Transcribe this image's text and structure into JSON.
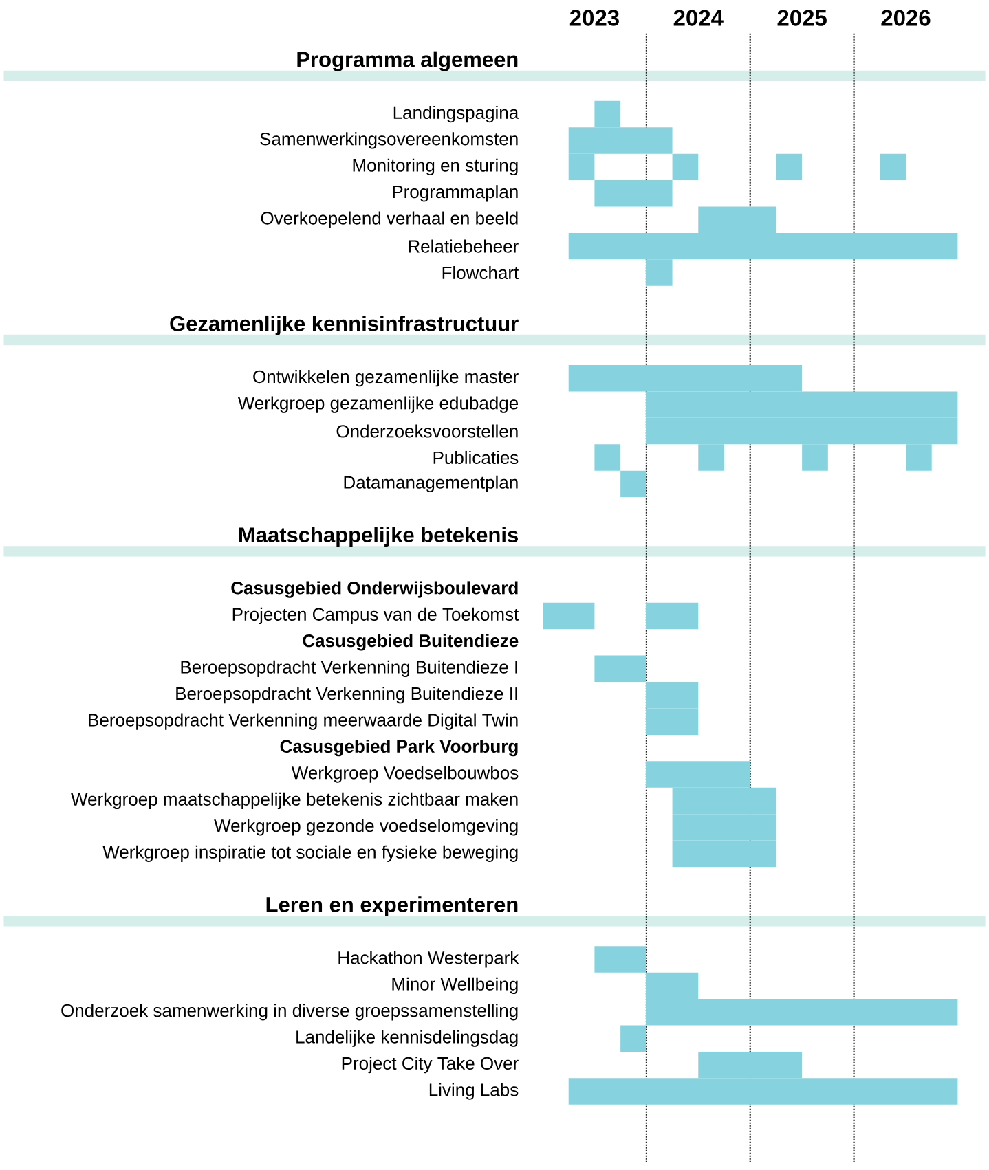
{
  "chart_data": {
    "type": "bar",
    "orientation": "horizontal",
    "xlim": [
      2023,
      2027
    ],
    "xticks": [
      {
        "value": 2023.5,
        "label": "2023"
      },
      {
        "value": 2024.5,
        "label": "2024"
      },
      {
        "value": 2025.5,
        "label": "2025"
      },
      {
        "value": 2026.5,
        "label": "2026"
      }
    ],
    "categories": [
      "**Programma algemeen**",
      null,
      "Landingspagina",
      "Samenwerkingsovereenkomsten",
      "Monitoring en sturing",
      "Programmaplan",
      "Overkoepelend verhaal en beeld",
      "Relatiebeheer",
      "Flowchart",
      null,
      "**Gezamenlijke kennisinfrastructuur**",
      null,
      "Ontwikkelen gezamenlijke master",
      "Werkgroep gezamenlijke edubadge",
      "Onderzoeksvoorstellen",
      "Publicaties",
      "Datamanagementplan",
      null,
      "**Maatschappelijke betekenis**",
      null,
      "**Casusgebied Onderwijsboulevard**",
      "Projecten Campus van de Toekomst",
      "**Casusgebied Buitendieze**",
      "Beroepsopdracht Verkenning Buitendieze I",
      "Beroepsopdracht Verkenning Buitendieze II",
      "Beroepsopdracht Verkenning meerwaarde Digital Twin",
      "**Casusgebied Park Voorburg**",
      "Werkgroep Voedselbouwbos",
      "Werkgroep maatschappelijke betekenis zichtbaar maken",
      "Werkgroep gezonde voedselomgeving",
      "Werkgroep inspiratie tot sociale en fysieke beweging",
      null,
      "**Leren en experimenteren**",
      null,
      "Hackathon Westerpark",
      "Minor Wellbeing",
      "Onderzoek samenwerking in diverse groepssamenstelling",
      "Landelijke kennisdelingsdag",
      "Project City Take Over",
      "Living Labs"
    ],
    "series": [
      {
        "color": "#86d3df",
        "base": [
          null,
          null,
          2023.5,
          2023.25,
          2023.25,
          2023.5,
          2024.5,
          2023.25,
          2024.0,
          null,
          null,
          null,
          2023.25,
          2024.0,
          2024.0,
          2023.5,
          2023.75,
          null,
          null,
          null,
          null,
          2023.0,
          null,
          2023.5,
          2024.0,
          2024.0,
          null,
          2024.0,
          2024.25,
          2024.25,
          2024.25,
          null,
          null,
          null,
          2023.5,
          2024.0,
          2024.0,
          2023.75,
          2024.5,
          2023.25
        ],
        "values": [
          null,
          null,
          0.25,
          1.0,
          0.25,
          0.75,
          0.75,
          3.75,
          0.25,
          null,
          null,
          null,
          2.25,
          3.0,
          3.0,
          0.25,
          0.25,
          null,
          null,
          null,
          null,
          0.5,
          null,
          0.5,
          0.5,
          0.5,
          null,
          1.0,
          1.0,
          1.0,
          1.0,
          null,
          null,
          null,
          0.5,
          0.5,
          3.0,
          0.25,
          1.0,
          3.75
        ]
      },
      {
        "color": "#86d3df",
        "base": [
          null,
          null,
          null,
          null,
          2024.25,
          null,
          null,
          null,
          null,
          null,
          null,
          null,
          null,
          null,
          null,
          2024.5,
          null,
          null,
          null,
          null,
          null,
          2024.0,
          null,
          null,
          null,
          null,
          null,
          null,
          null,
          null,
          null,
          null,
          null,
          null,
          null,
          null,
          null,
          null,
          null,
          null
        ],
        "values": [
          null,
          null,
          null,
          null,
          0.25,
          null,
          null,
          null,
          null,
          null,
          null,
          null,
          null,
          null,
          null,
          0.25,
          null,
          null,
          null,
          null,
          null,
          0.5,
          null,
          null,
          null,
          null,
          null,
          null,
          null,
          null,
          null,
          null,
          null,
          null,
          null,
          null,
          null,
          null,
          null,
          null
        ]
      },
      {
        "color": "#86d3df",
        "base": [
          null,
          null,
          null,
          null,
          2025.25,
          null,
          null,
          null,
          null,
          null,
          null,
          null,
          null,
          null,
          null,
          2025.5,
          null,
          null,
          null,
          null,
          null,
          null,
          null,
          null,
          null,
          null,
          null,
          null,
          null,
          null,
          null,
          null,
          null,
          null,
          null,
          null,
          null,
          null,
          null,
          null
        ],
        "values": [
          null,
          null,
          null,
          null,
          0.25,
          null,
          null,
          null,
          null,
          null,
          null,
          null,
          null,
          null,
          null,
          0.25,
          null,
          null,
          null,
          null,
          null,
          null,
          null,
          null,
          null,
          null,
          null,
          null,
          null,
          null,
          null,
          null,
          null,
          null,
          null,
          null,
          null,
          null,
          null,
          null
        ]
      },
      {
        "color": "#86d3df",
        "base": [
          null,
          null,
          null,
          null,
          2026.25,
          null,
          null,
          null,
          null,
          null,
          null,
          null,
          null,
          null,
          null,
          2026.5,
          null,
          null,
          null,
          null,
          null,
          null,
          null,
          null,
          null,
          null,
          null,
          null,
          null,
          null,
          null,
          null,
          null,
          null,
          null,
          null,
          null,
          null,
          null,
          null
        ],
        "values": [
          null,
          null,
          null,
          null,
          0.25,
          null,
          null,
          null,
          null,
          null,
          null,
          null,
          null,
          null,
          null,
          0.25,
          null,
          null,
          null,
          null,
          null,
          null,
          null,
          null,
          null,
          null,
          null,
          null,
          null,
          null,
          null,
          null,
          null,
          null,
          null,
          null,
          null,
          null,
          null,
          null
        ]
      }
    ],
    "ref_lines": [
      {
        "axis": "x",
        "value": 2024,
        "line_style": "dotted",
        "color": "#000000"
      },
      {
        "axis": "x",
        "value": 2025,
        "line_style": "dotted",
        "color": "#000000"
      },
      {
        "axis": "x",
        "value": 2026,
        "line_style": "dotted",
        "color": "#000000"
      }
    ]
  }
}
